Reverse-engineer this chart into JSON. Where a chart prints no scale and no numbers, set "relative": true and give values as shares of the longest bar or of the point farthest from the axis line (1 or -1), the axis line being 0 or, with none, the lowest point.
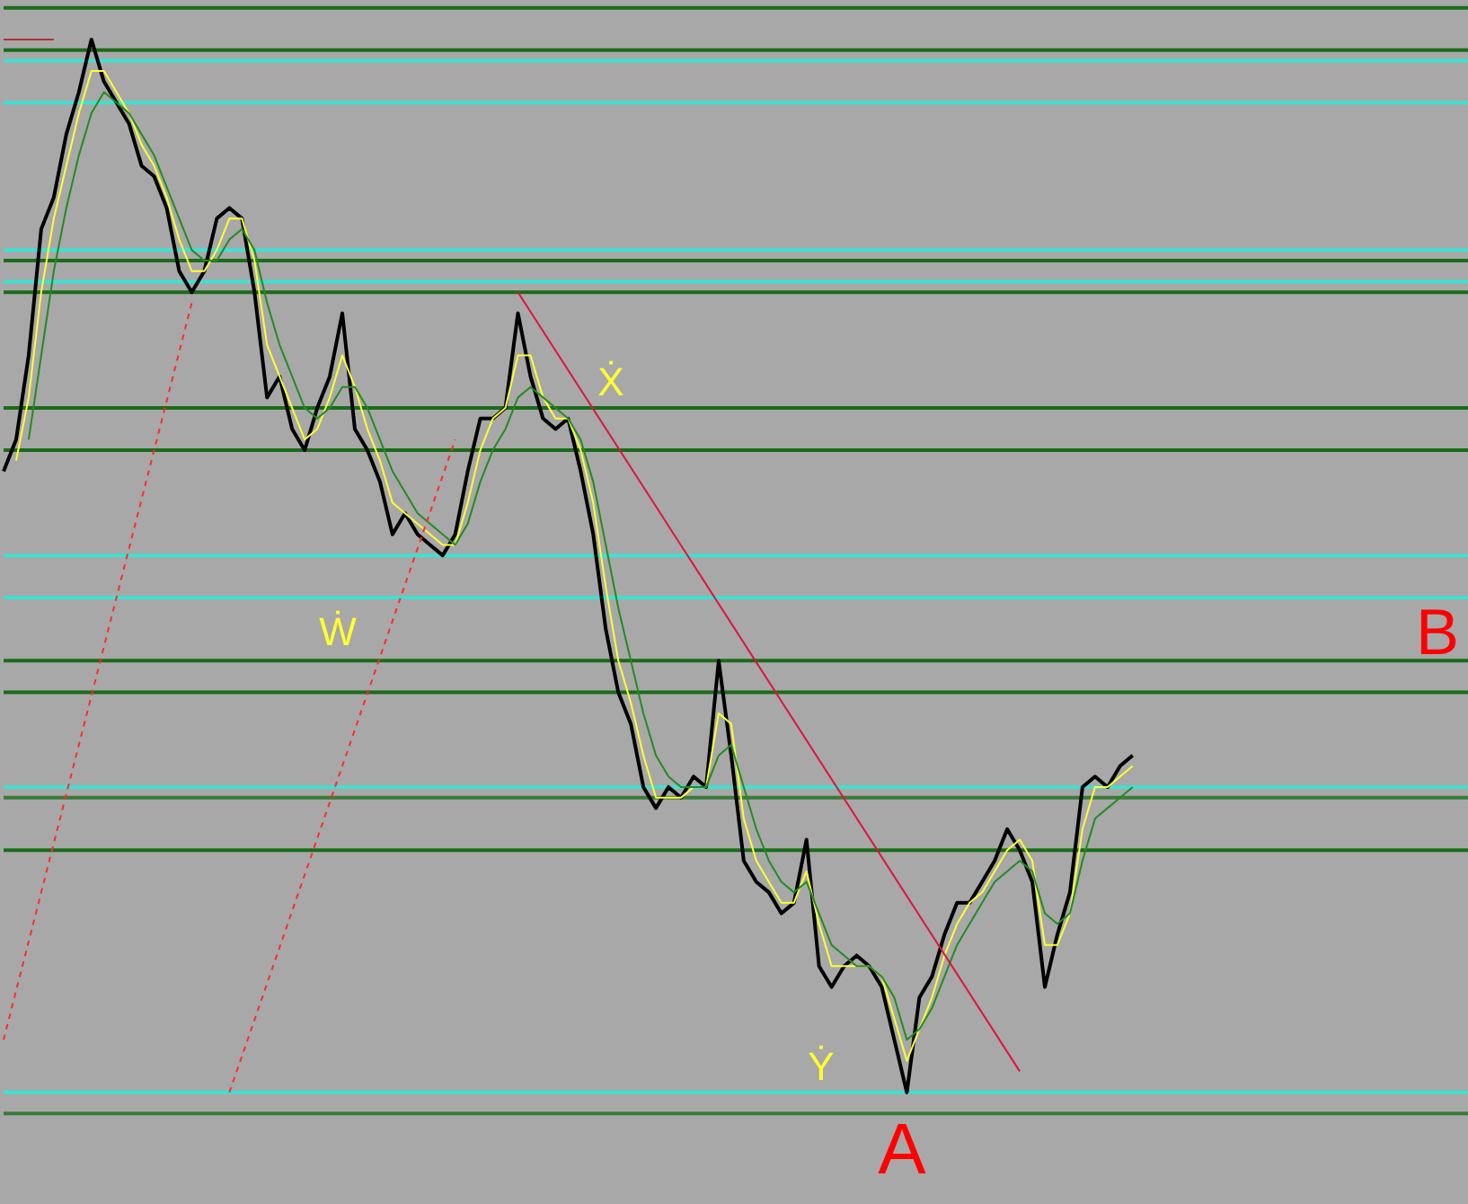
{
  "chart_data": {
    "type": "line",
    "relative": true,
    "categories": [
      null,
      null,
      null,
      null,
      null,
      null,
      null,
      null,
      null,
      null,
      null,
      null,
      null,
      null,
      null,
      null,
      null,
      null,
      null,
      null,
      null,
      null,
      null,
      null,
      null,
      null,
      null,
      null,
      null,
      null,
      null,
      null,
      null,
      null,
      null,
      null,
      null,
      null,
      null,
      null,
      null,
      null,
      null,
      null,
      null,
      null,
      null,
      null,
      null,
      null,
      null,
      null,
      null,
      null,
      null,
      null,
      null,
      null,
      null,
      null,
      null,
      null,
      null,
      null,
      null,
      null,
      null,
      null,
      null,
      null,
      null,
      null,
      null,
      null,
      null,
      null,
      null,
      null,
      null,
      null,
      null,
      null,
      null,
      null,
      null,
      null,
      null,
      null,
      null,
      null,
      null
    ],
    "series": [
      {
        "color": "#000000",
        "values": [
          0.59,
          0.62,
          0.7,
          0.82,
          0.85,
          0.91,
          0.95,
          1.0,
          0.96,
          0.94,
          0.92,
          0.88,
          0.87,
          0.84,
          0.78,
          0.76,
          0.78,
          0.83,
          0.84,
          0.83,
          0.76,
          0.66,
          0.68,
          0.63,
          0.61,
          0.65,
          0.68,
          0.74,
          0.63,
          0.61,
          0.58,
          0.53,
          0.55,
          0.53,
          0.52,
          0.51,
          0.53,
          0.59,
          0.64,
          0.64,
          0.65,
          0.74,
          0.68,
          0.64,
          0.63,
          0.64,
          0.59,
          0.53,
          0.44,
          0.38,
          0.35,
          0.29,
          0.27,
          0.29,
          0.28,
          0.3,
          0.29,
          0.41,
          0.32,
          0.22,
          0.2,
          0.19,
          0.17,
          0.18,
          0.24,
          0.12,
          0.1,
          0.12,
          0.13,
          0.12,
          0.1,
          0.05,
          0.0,
          0.09,
          0.11,
          0.15,
          0.18,
          0.18,
          0.2,
          0.22,
          0.25,
          0.23,
          0.2,
          0.1,
          0.15,
          0.19,
          0.29,
          0.3,
          0.29,
          0.31,
          0.32
        ]
      },
      {
        "color": "#ffff33",
        "values": [
          null,
          0.6,
          0.66,
          0.76,
          0.83,
          0.88,
          0.93,
          0.97,
          0.97,
          0.95,
          0.93,
          0.9,
          0.88,
          0.85,
          0.81,
          0.78,
          0.78,
          0.8,
          0.83,
          0.83,
          0.79,
          0.71,
          0.68,
          0.65,
          0.62,
          0.63,
          0.66,
          0.7,
          0.67,
          0.63,
          0.6,
          0.56,
          0.55,
          0.54,
          0.53,
          0.52,
          0.52,
          0.56,
          0.61,
          0.64,
          0.65,
          0.7,
          0.7,
          0.66,
          0.64,
          0.64,
          0.61,
          0.56,
          0.48,
          0.41,
          0.37,
          0.32,
          0.28,
          0.28,
          0.28,
          0.29,
          0.29,
          0.36,
          0.35,
          0.26,
          0.22,
          0.2,
          0.18,
          0.18,
          0.21,
          0.16,
          0.12,
          0.12,
          0.12,
          0.12,
          0.11,
          0.07,
          0.03,
          0.06,
          0.09,
          0.13,
          0.16,
          0.18,
          0.19,
          0.21,
          0.23,
          0.24,
          0.22,
          0.14,
          0.14,
          0.17,
          0.25,
          0.29,
          0.29,
          0.3,
          0.31
        ]
      },
      {
        "color": "#228b22",
        "values": [
          null,
          null,
          0.62,
          0.7,
          0.78,
          0.84,
          0.89,
          0.93,
          0.95,
          0.94,
          0.93,
          0.91,
          0.89,
          0.86,
          0.83,
          0.8,
          0.79,
          0.79,
          0.81,
          0.82,
          0.8,
          0.75,
          0.71,
          0.68,
          0.65,
          0.64,
          0.65,
          0.67,
          0.67,
          0.65,
          0.62,
          0.59,
          0.57,
          0.55,
          0.54,
          0.53,
          0.52,
          0.54,
          0.58,
          0.61,
          0.63,
          0.66,
          0.67,
          0.66,
          0.65,
          0.64,
          0.62,
          0.58,
          0.52,
          0.46,
          0.41,
          0.36,
          0.32,
          0.3,
          0.29,
          0.29,
          0.29,
          0.32,
          0.33,
          0.29,
          0.25,
          0.22,
          0.2,
          0.19,
          0.2,
          0.17,
          0.14,
          0.13,
          0.12,
          0.12,
          0.11,
          0.09,
          0.05,
          0.06,
          0.08,
          0.11,
          0.14,
          0.16,
          0.18,
          0.2,
          0.21,
          0.22,
          0.21,
          0.17,
          0.16,
          0.17,
          0.22,
          0.26,
          0.27,
          0.28,
          0.29
        ]
      },
      {
        "color": "#dc143c",
        "values": [
          null,
          null,
          null,
          null,
          null,
          null,
          null,
          null,
          null,
          null,
          null,
          null,
          null,
          null,
          null,
          null,
          null,
          null,
          null,
          null,
          null,
          null,
          null,
          null,
          null,
          null,
          null,
          null,
          null,
          null,
          null,
          null,
          null,
          null,
          null,
          null,
          null,
          null,
          null,
          null,
          null,
          0.76,
          null,
          null,
          null,
          null,
          null,
          null,
          null,
          null,
          null,
          null,
          null,
          null,
          null,
          null,
          null,
          null,
          null,
          null,
          null,
          null,
          null,
          null,
          null,
          null,
          null,
          null,
          null,
          null,
          null,
          null,
          null,
          null,
          null,
          null,
          null,
          null,
          null,
          null,
          null,
          0.02,
          null,
          null,
          null,
          null,
          null,
          null,
          null,
          null,
          null
        ]
      },
      {
        "color": "#ff2a2a",
        "line_style": "dashed",
        "values": [
          0.05,
          null,
          null,
          null,
          null,
          null,
          null,
          null,
          null,
          null,
          null,
          null,
          null,
          null,
          null,
          0.75,
          null,
          null,
          null,
          null,
          null,
          null,
          null,
          null,
          null,
          null,
          null,
          null,
          null,
          null,
          null,
          null,
          null,
          null,
          null,
          null,
          null,
          null,
          null,
          null,
          null,
          null,
          null,
          null,
          null,
          null,
          null,
          null,
          null,
          null,
          null,
          null,
          null,
          null,
          null,
          null,
          null,
          null,
          null,
          null,
          null,
          null,
          null,
          null,
          null,
          null,
          null,
          null,
          null,
          null,
          null,
          null,
          null,
          null,
          null,
          null,
          null,
          null,
          null,
          null,
          null,
          null,
          null,
          null,
          null,
          null,
          null,
          null,
          null,
          null,
          null
        ]
      },
      {
        "color": "#ff2a2a",
        "line_style": "dashed",
        "values": [
          null,
          null,
          null,
          null,
          null,
          null,
          null,
          null,
          null,
          null,
          null,
          null,
          null,
          null,
          null,
          null,
          null,
          null,
          0.0,
          null,
          null,
          null,
          null,
          null,
          null,
          null,
          null,
          null,
          null,
          null,
          null,
          null,
          null,
          null,
          null,
          null,
          0.62,
          null,
          null,
          null,
          null,
          null,
          null,
          null,
          null,
          null,
          null,
          null,
          null,
          null,
          null,
          null,
          null,
          null,
          null,
          null,
          null,
          null,
          null,
          null,
          null,
          null,
          null,
          null,
          null,
          null,
          null,
          null,
          null,
          null,
          null,
          null,
          null,
          null,
          null,
          null,
          null,
          null,
          null,
          null,
          null,
          null,
          null,
          null,
          null,
          null,
          null,
          null,
          null,
          null,
          null
        ]
      },
      {
        "color": "#b03030",
        "values": [
          1.0,
          1.0,
          1.0,
          1.0,
          1.0,
          null,
          null,
          null,
          null,
          null,
          null,
          null,
          null,
          null,
          null,
          null,
          null,
          null,
          null,
          null,
          null,
          null,
          null,
          null,
          null,
          null,
          null,
          null,
          null,
          null,
          null,
          null,
          null,
          null,
          null,
          null,
          null,
          null,
          null,
          null,
          null,
          null,
          null,
          null,
          null,
          null,
          null,
          null,
          null,
          null,
          null,
          null,
          null,
          null,
          null,
          null,
          null,
          null,
          null,
          null,
          null,
          null,
          null,
          null,
          null,
          null,
          null,
          null,
          null,
          null,
          null,
          null,
          null,
          null,
          null,
          null,
          null,
          null,
          null,
          null,
          null,
          null,
          null,
          null,
          null,
          null,
          null,
          null,
          null,
          null,
          null
        ]
      }
    ],
    "ref_lines": [
      {
        "axis": "y",
        "value": 1.03,
        "color": "#1a6b1a"
      },
      {
        "axis": "y",
        "value": 0.99,
        "color": "#1a6b1a"
      },
      {
        "axis": "y",
        "value": 0.98,
        "color": "#40e0d0"
      },
      {
        "axis": "y",
        "value": 0.94,
        "color": "#40e0d0"
      },
      {
        "axis": "y",
        "value": 0.8,
        "color": "#40e0d0"
      },
      {
        "axis": "y",
        "value": 0.79,
        "color": "#1a6b1a"
      },
      {
        "axis": "y",
        "value": 0.77,
        "color": "#40e0d0"
      },
      {
        "axis": "y",
        "value": 0.76,
        "color": "#1a6b1a"
      },
      {
        "axis": "y",
        "value": 0.65,
        "color": "#1a6b1a"
      },
      {
        "axis": "y",
        "value": 0.61,
        "color": "#1a6b1a"
      },
      {
        "axis": "y",
        "value": 0.51,
        "color": "#40e0d0"
      },
      {
        "axis": "y",
        "value": 0.47,
        "color": "#40e0d0"
      },
      {
        "axis": "y",
        "value": 0.41,
        "color": "#1a6b1a"
      },
      {
        "axis": "y",
        "value": 0.38,
        "color": "#1a6b1a"
      },
      {
        "axis": "y",
        "value": 0.29,
        "color": "#40e0d0"
      },
      {
        "axis": "y",
        "value": 0.28,
        "color": "#3a7a3a"
      },
      {
        "axis": "y",
        "value": 0.23,
        "color": "#1a6b1a"
      },
      {
        "axis": "y",
        "value": 0.0,
        "color": "#40e0d0"
      },
      {
        "axis": "y",
        "value": -0.02,
        "color": "#3a7a3a"
      }
    ],
    "annotations": [
      "Ẋ",
      "Ẇ",
      "Ẏ",
      "A",
      "B"
    ]
  }
}
